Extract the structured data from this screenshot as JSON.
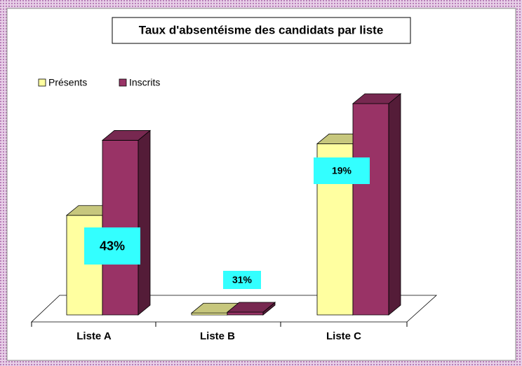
{
  "chart_data": {
    "type": "bar3d",
    "title": "Taux d'absentéisme des candidats par liste",
    "categories": [
      "Liste A",
      "Liste B",
      "Liste C"
    ],
    "series": [
      {
        "name": "Présents",
        "color": "#ffffa0",
        "values": [
          57,
          1.1,
          98
        ]
      },
      {
        "name": "Inscrits",
        "color": "#993366",
        "values": [
          100,
          1.6,
          121
        ]
      }
    ],
    "annotations": [
      "43%",
      "31%",
      "19%"
    ],
    "legend": "top-left"
  }
}
